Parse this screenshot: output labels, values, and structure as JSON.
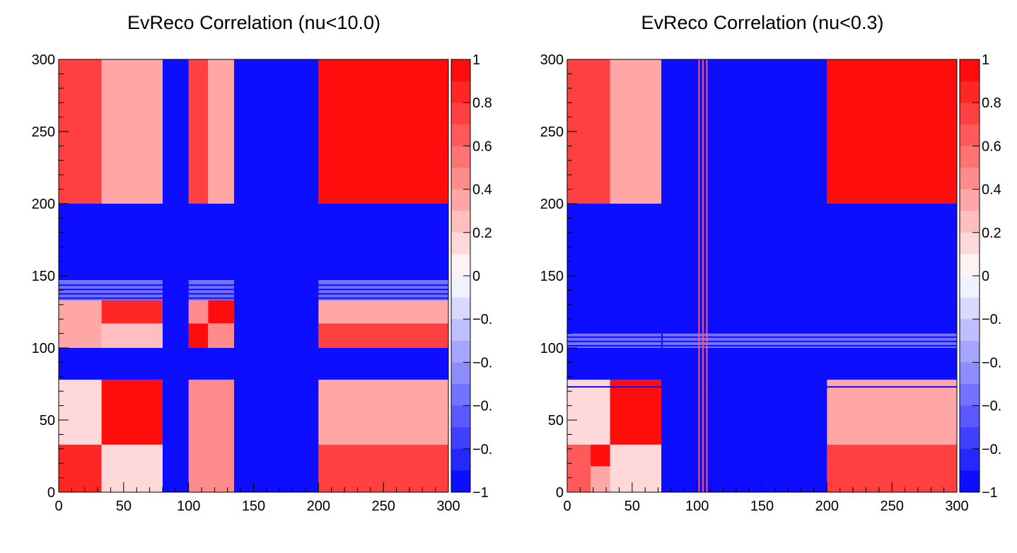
{
  "chart_data": [
    {
      "type": "heatmap",
      "title": "EvReco Correlation (nu<10.0)",
      "xlabel": "",
      "ylabel": "",
      "xlim": [
        0,
        300
      ],
      "ylim": [
        0,
        300
      ],
      "zlim": [
        -1,
        1
      ],
      "x_ticks": [
        "0",
        "50",
        "100",
        "150",
        "200",
        "250",
        "300"
      ],
      "y_ticks": [
        "0",
        "50",
        "100",
        "150",
        "200",
        "250",
        "300"
      ],
      "z_ticks": [
        "1",
        "0.8",
        "0.6",
        "0.4",
        "0.2",
        "0",
        "−0.",
        "−0.",
        "−0.",
        "−0.",
        "−1"
      ],
      "palette_low": "#0000ff",
      "palette_mid": "#ffffff",
      "palette_high": "#ff0000",
      "regions": [
        {
          "x": [
            0,
            300
          ],
          "y": [
            0,
            300
          ],
          "z": 0.25
        },
        {
          "x": [
            200,
            300
          ],
          "y": [
            200,
            300
          ],
          "z": 0.95
        },
        {
          "x": [
            0,
            33
          ],
          "y": [
            200,
            300
          ],
          "z": 0.7
        },
        {
          "x": [
            33,
            80
          ],
          "y": [
            200,
            300
          ],
          "z": 0.35
        },
        {
          "x": [
            100,
            115
          ],
          "y": [
            200,
            300
          ],
          "z": 0.7
        },
        {
          "x": [
            115,
            135
          ],
          "y": [
            200,
            300
          ],
          "z": 0.3
        },
        {
          "x": [
            0,
            33
          ],
          "y": [
            0,
            33
          ],
          "z": 0.8
        },
        {
          "x": [
            0,
            33
          ],
          "y": [
            33,
            78
          ],
          "z": 0.15
        },
        {
          "x": [
            33,
            80
          ],
          "y": [
            0,
            33
          ],
          "z": 0.1
        },
        {
          "x": [
            33,
            80
          ],
          "y": [
            33,
            78
          ],
          "z": 0.95
        },
        {
          "x": [
            100,
            135
          ],
          "y": [
            0,
            78
          ],
          "z": 0.4
        },
        {
          "x": [
            200,
            300
          ],
          "y": [
            0,
            33
          ],
          "z": 0.75
        },
        {
          "x": [
            200,
            300
          ],
          "y": [
            33,
            78
          ],
          "z": 0.3
        },
        {
          "x": [
            0,
            33
          ],
          "y": [
            100,
            135
          ],
          "z": 0.3
        },
        {
          "x": [
            33,
            80
          ],
          "y": [
            100,
            117
          ],
          "z": 0.25
        },
        {
          "x": [
            33,
            80
          ],
          "y": [
            117,
            135
          ],
          "z": 0.85
        },
        {
          "x": [
            100,
            115
          ],
          "y": [
            100,
            117
          ],
          "z": 0.95
        },
        {
          "x": [
            115,
            135
          ],
          "y": [
            117,
            135
          ],
          "z": 0.95
        },
        {
          "x": [
            100,
            115
          ],
          "y": [
            117,
            135
          ],
          "z": 0.4
        },
        {
          "x": [
            115,
            135
          ],
          "y": [
            100,
            117
          ],
          "z": 0.4
        },
        {
          "x": [
            200,
            300
          ],
          "y": [
            100,
            117
          ],
          "z": 0.75
        },
        {
          "x": [
            200,
            300
          ],
          "y": [
            117,
            135
          ],
          "z": 0.35
        },
        {
          "x": [
            0,
            300
          ],
          "y": [
            78,
            100
          ],
          "z": -1
        },
        {
          "x": [
            0,
            300
          ],
          "y": [
            147,
            200
          ],
          "z": -1
        },
        {
          "x": [
            0,
            300
          ],
          "y": [
            133,
            147
          ],
          "z": -0.6
        },
        {
          "x": [
            80,
            100
          ],
          "y": [
            0,
            300
          ],
          "z": -1
        },
        {
          "x": [
            135,
            200
          ],
          "y": [
            0,
            300
          ],
          "z": -1
        }
      ],
      "lines": [
        {
          "orient": "h",
          "pos": 134.5,
          "z": -1
        },
        {
          "orient": "h",
          "pos": 137.5,
          "z": -1
        },
        {
          "orient": "h",
          "pos": 140.5,
          "z": -1
        },
        {
          "orient": "h",
          "pos": 143.5,
          "z": -1
        },
        {
          "orient": "v",
          "pos": 137.5,
          "z": -1
        },
        {
          "orient": "v",
          "pos": 140.5,
          "z": -1
        }
      ]
    },
    {
      "type": "heatmap",
      "title": "EvReco Correlation (nu<0.3)",
      "xlabel": "",
      "ylabel": "",
      "xlim": [
        0,
        300
      ],
      "ylim": [
        0,
        300
      ],
      "zlim": [
        -1,
        1
      ],
      "x_ticks": [
        "0",
        "50",
        "100",
        "150",
        "200",
        "250",
        "300"
      ],
      "y_ticks": [
        "0",
        "50",
        "100",
        "150",
        "200",
        "250",
        "300"
      ],
      "z_ticks": [
        "1",
        "0.8",
        "0.6",
        "0.4",
        "0.2",
        "0",
        "−0.",
        "−0.",
        "−0.",
        "−0.",
        "−1"
      ],
      "palette_low": "#0000ff",
      "palette_mid": "#ffffff",
      "palette_high": "#ff0000",
      "regions": [
        {
          "x": [
            0,
            300
          ],
          "y": [
            0,
            300
          ],
          "z": 0.25
        },
        {
          "x": [
            200,
            300
          ],
          "y": [
            200,
            300
          ],
          "z": 0.95
        },
        {
          "x": [
            0,
            33
          ],
          "y": [
            200,
            300
          ],
          "z": 0.7
        },
        {
          "x": [
            33,
            73
          ],
          "y": [
            200,
            300
          ],
          "z": 0.35
        },
        {
          "x": [
            0,
            18
          ],
          "y": [
            0,
            33
          ],
          "z": 0.6
        },
        {
          "x": [
            18,
            33
          ],
          "y": [
            0,
            33
          ],
          "z": 0.3
        },
        {
          "x": [
            18,
            33
          ],
          "y": [
            18,
            33
          ],
          "z": 0.95
        },
        {
          "x": [
            0,
            33
          ],
          "y": [
            33,
            78
          ],
          "z": 0.15
        },
        {
          "x": [
            33,
            73
          ],
          "y": [
            0,
            33
          ],
          "z": 0.1
        },
        {
          "x": [
            33,
            73
          ],
          "y": [
            33,
            78
          ],
          "z": 0.95
        },
        {
          "x": [
            200,
            300
          ],
          "y": [
            0,
            33
          ],
          "z": 0.75
        },
        {
          "x": [
            200,
            300
          ],
          "y": [
            33,
            78
          ],
          "z": 0.3
        },
        {
          "x": [
            0,
            300
          ],
          "y": [
            78,
            200
          ],
          "z": -1
        },
        {
          "x": [
            73,
            200
          ],
          "y": [
            0,
            300
          ],
          "z": -1
        },
        {
          "x": [
            0,
            300
          ],
          "y": [
            100,
            110
          ],
          "z": -0.6
        }
      ],
      "lines": [
        {
          "orient": "h",
          "pos": 73,
          "z": -1
        },
        {
          "orient": "h",
          "pos": 101.5,
          "z": -1
        },
        {
          "orient": "h",
          "pos": 104.5,
          "z": -1
        },
        {
          "orient": "h",
          "pos": 107.5,
          "z": -1
        },
        {
          "orient": "v",
          "pos": 73,
          "z": -1
        },
        {
          "orient": "v",
          "pos": 101.5,
          "z": 0.6
        },
        {
          "orient": "v",
          "pos": 104.5,
          "z": 0.6
        },
        {
          "orient": "v",
          "pos": 107.5,
          "z": 0.6
        }
      ]
    }
  ]
}
